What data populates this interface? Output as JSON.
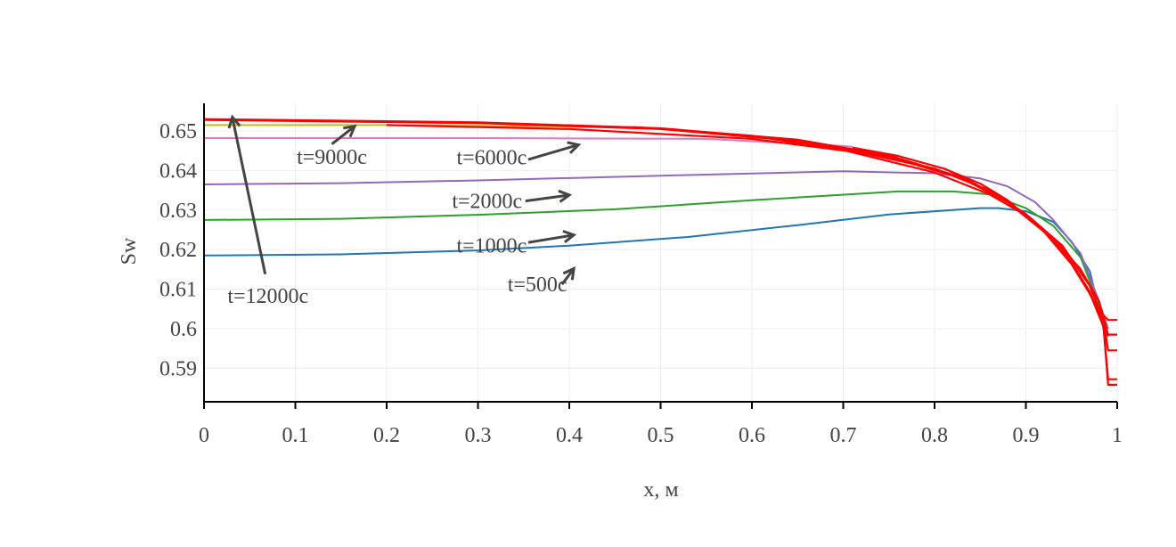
{
  "chart_data": {
    "type": "line",
    "title": "",
    "xlabel": "x, м",
    "ylabel": "Sw",
    "xlim": [
      0,
      1
    ],
    "ylim": [
      0.5815,
      0.657
    ],
    "xticks": [
      0,
      0.1,
      0.2,
      0.3,
      0.4,
      0.5,
      0.6,
      0.7,
      0.8,
      0.9,
      1
    ],
    "xtick_labels": [
      "0",
      "0.1",
      "0.2",
      "0.3",
      "0.4",
      "0.5",
      "0.6",
      "0.7",
      "0.8",
      "0.9",
      "1"
    ],
    "yticks": [
      0.59,
      0.6,
      0.61,
      0.62,
      0.63,
      0.64,
      0.65
    ],
    "ytick_labels": [
      "0.59",
      "0.6",
      "0.61",
      "0.62",
      "0.63",
      "0.64",
      "0.65"
    ],
    "grid": true,
    "legend": "none",
    "series": [
      {
        "color": "#1f77b4",
        "x": [
          0,
          0.15,
          0.3,
          0.4,
          0.53,
          0.65,
          0.75,
          0.85,
          0.87,
          0.9,
          0.93,
          0.95,
          0.97,
          0.985,
          0.99
        ],
        "y": [
          0.6185,
          0.6188,
          0.6198,
          0.621,
          0.6232,
          0.6262,
          0.6289,
          0.6305,
          0.6305,
          0.6297,
          0.627,
          0.622,
          0.6145,
          0.6,
          0.598
        ]
      },
      {
        "color": "#2ca02c",
        "x": [
          0,
          0.15,
          0.3,
          0.45,
          0.6,
          0.76,
          0.82,
          0.86,
          0.9,
          0.93,
          0.96,
          0.98,
          0.99
        ],
        "y": [
          0.6275,
          0.6278,
          0.6288,
          0.6302,
          0.6325,
          0.6347,
          0.6347,
          0.634,
          0.6305,
          0.626,
          0.618,
          0.606,
          0.6
        ]
      },
      {
        "color": "#9467bd",
        "x": [
          0,
          0.15,
          0.3,
          0.5,
          0.7,
          0.8,
          0.85,
          0.88,
          0.91,
          0.93,
          0.96,
          0.98,
          0.99
        ],
        "y": [
          0.6365,
          0.6368,
          0.6375,
          0.6387,
          0.6398,
          0.6393,
          0.638,
          0.636,
          0.632,
          0.6275,
          0.619,
          0.607,
          0.6
        ]
      },
      {
        "color": "#e377c2",
        "x": [
          0,
          0.3,
          0.55,
          0.7,
          0.71
        ],
        "y": [
          0.6482,
          0.6482,
          0.648,
          0.6462,
          0.646
        ]
      },
      {
        "color": "#bcbd22",
        "x": [
          0,
          0.2,
          0.47
        ],
        "y": [
          0.6515,
          0.6515,
          0.651
        ]
      },
      {
        "color": "#ff0000",
        "x": [
          0.71,
          0.76,
          0.81,
          0.85,
          0.88,
          0.92,
          0.95,
          0.97,
          0.98,
          0.99,
          1
        ],
        "y": [
          0.6458,
          0.6437,
          0.6405,
          0.6367,
          0.6325,
          0.6245,
          0.6163,
          0.6088,
          0.6045,
          0.6022,
          0.6022
        ]
      },
      {
        "color": "#ff0000",
        "x": [
          0.47,
          0.6,
          0.7,
          0.8,
          0.86,
          0.9,
          0.93,
          0.96,
          0.98,
          0.99,
          1
        ],
        "y": [
          0.651,
          0.6488,
          0.6452,
          0.6395,
          0.634,
          0.6287,
          0.6228,
          0.615,
          0.607,
          0.5985,
          0.5985
        ]
      },
      {
        "color": "#ff0000",
        "x": [
          0.2,
          0.4,
          0.6,
          0.72,
          0.8,
          0.86,
          0.9,
          0.94,
          0.97,
          0.985,
          0.99,
          1
        ],
        "y": [
          0.6515,
          0.6505,
          0.648,
          0.6445,
          0.6405,
          0.635,
          0.629,
          0.621,
          0.6108,
          0.6022,
          0.5945,
          0.5945
        ]
      },
      {
        "color": "#ff0000",
        "x": [
          0,
          0.3,
          0.5,
          0.65,
          0.75,
          0.83,
          0.88,
          0.92,
          0.95,
          0.97,
          0.985,
          0.99,
          1
        ],
        "y": [
          0.6528,
          0.652,
          0.6505,
          0.6475,
          0.6435,
          0.638,
          0.632,
          0.6245,
          0.6165,
          0.609,
          0.6005,
          0.5872,
          0.5872
        ]
      },
      {
        "color": "#ff0000",
        "x": [
          0,
          0.3,
          0.5,
          0.65,
          0.75,
          0.83,
          0.88,
          0.92,
          0.95,
          0.97,
          0.985,
          0.99,
          1
        ],
        "y": [
          0.653,
          0.6522,
          0.6507,
          0.6478,
          0.6438,
          0.6383,
          0.6323,
          0.6248,
          0.6168,
          0.6093,
          0.6008,
          0.5858,
          0.5858
        ]
      }
    ],
    "annotations": [
      {
        "text": "t=500с",
        "text_x": 0.365,
        "text_y": 0.6095,
        "arrow_from": [
          0.392,
          0.6112
        ],
        "arrow_to": [
          0.405,
          0.6152
        ]
      },
      {
        "text": "t=1000с",
        "text_x": 0.315,
        "text_y": 0.6193,
        "arrow_from": [
          0.355,
          0.6218
        ],
        "arrow_to": [
          0.405,
          0.6237
        ]
      },
      {
        "text": "t=2000с",
        "text_x": 0.31,
        "text_y": 0.6305,
        "arrow_from": [
          0.352,
          0.6323
        ],
        "arrow_to": [
          0.4,
          0.6338
        ]
      },
      {
        "text": "t=6000с",
        "text_x": 0.315,
        "text_y": 0.6416,
        "arrow_from": [
          0.355,
          0.6428
        ],
        "arrow_to": [
          0.41,
          0.6465
        ]
      },
      {
        "text": "t=9000с",
        "text_x": 0.14,
        "text_y": 0.6417,
        "arrow_from": [
          0.14,
          0.6467
        ],
        "arrow_to": [
          0.165,
          0.6512
        ]
      },
      {
        "text": "t=12000с",
        "text_x": 0.07,
        "text_y": 0.6065,
        "arrow_from": [
          0.067,
          0.6138
        ],
        "arrow_to": [
          0.031,
          0.6535
        ]
      }
    ]
  }
}
